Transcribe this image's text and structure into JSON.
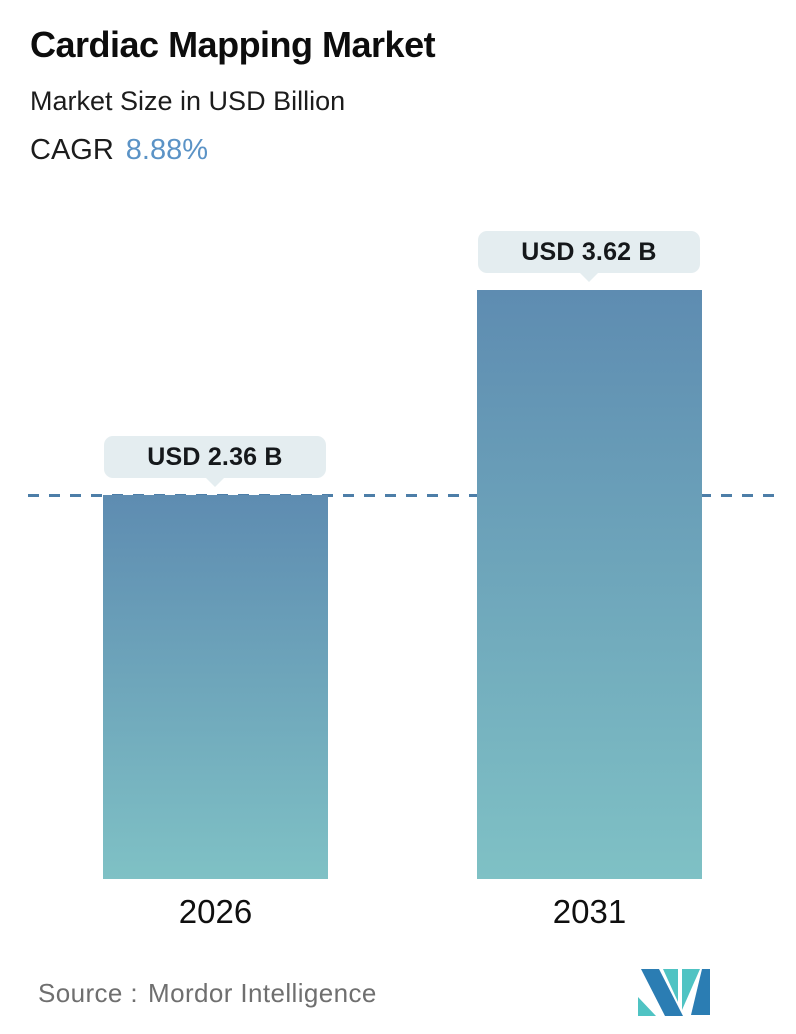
{
  "header": {
    "title": "Cardiac Mapping Market",
    "subtitle": "Market Size in USD Billion",
    "cagr_label": "CAGR",
    "cagr_value": "8.88%"
  },
  "chart_data": {
    "type": "bar",
    "title": "Cardiac Mapping Market",
    "subtitle": "Market Size in USD Billion",
    "cagr": "8.88%",
    "categories": [
      "2026",
      "2031"
    ],
    "values": [
      2.36,
      3.62
    ],
    "value_labels": [
      "USD 2.36 B",
      "USD 3.62 B"
    ],
    "unit": "USD Billion",
    "ylim": [
      0,
      3.95
    ],
    "grid": false,
    "legend": "none",
    "reference_line": {
      "style": "dashed",
      "at_value": 2.36
    }
  },
  "footer": {
    "source_label": "Source :",
    "source_value": "Mordor Intelligence"
  },
  "theme": {
    "accent-blue": "#5b93c6",
    "bar-top": "#5e8cb1",
    "bar-bottom": "#7fc1c5",
    "dash-color": "#4d7ea8",
    "tooltip-bg": "#e4edf0",
    "text-gray": "#6f6f6f",
    "logo-blue": "#2b7db3",
    "logo-teal": "#4fc3c3"
  }
}
